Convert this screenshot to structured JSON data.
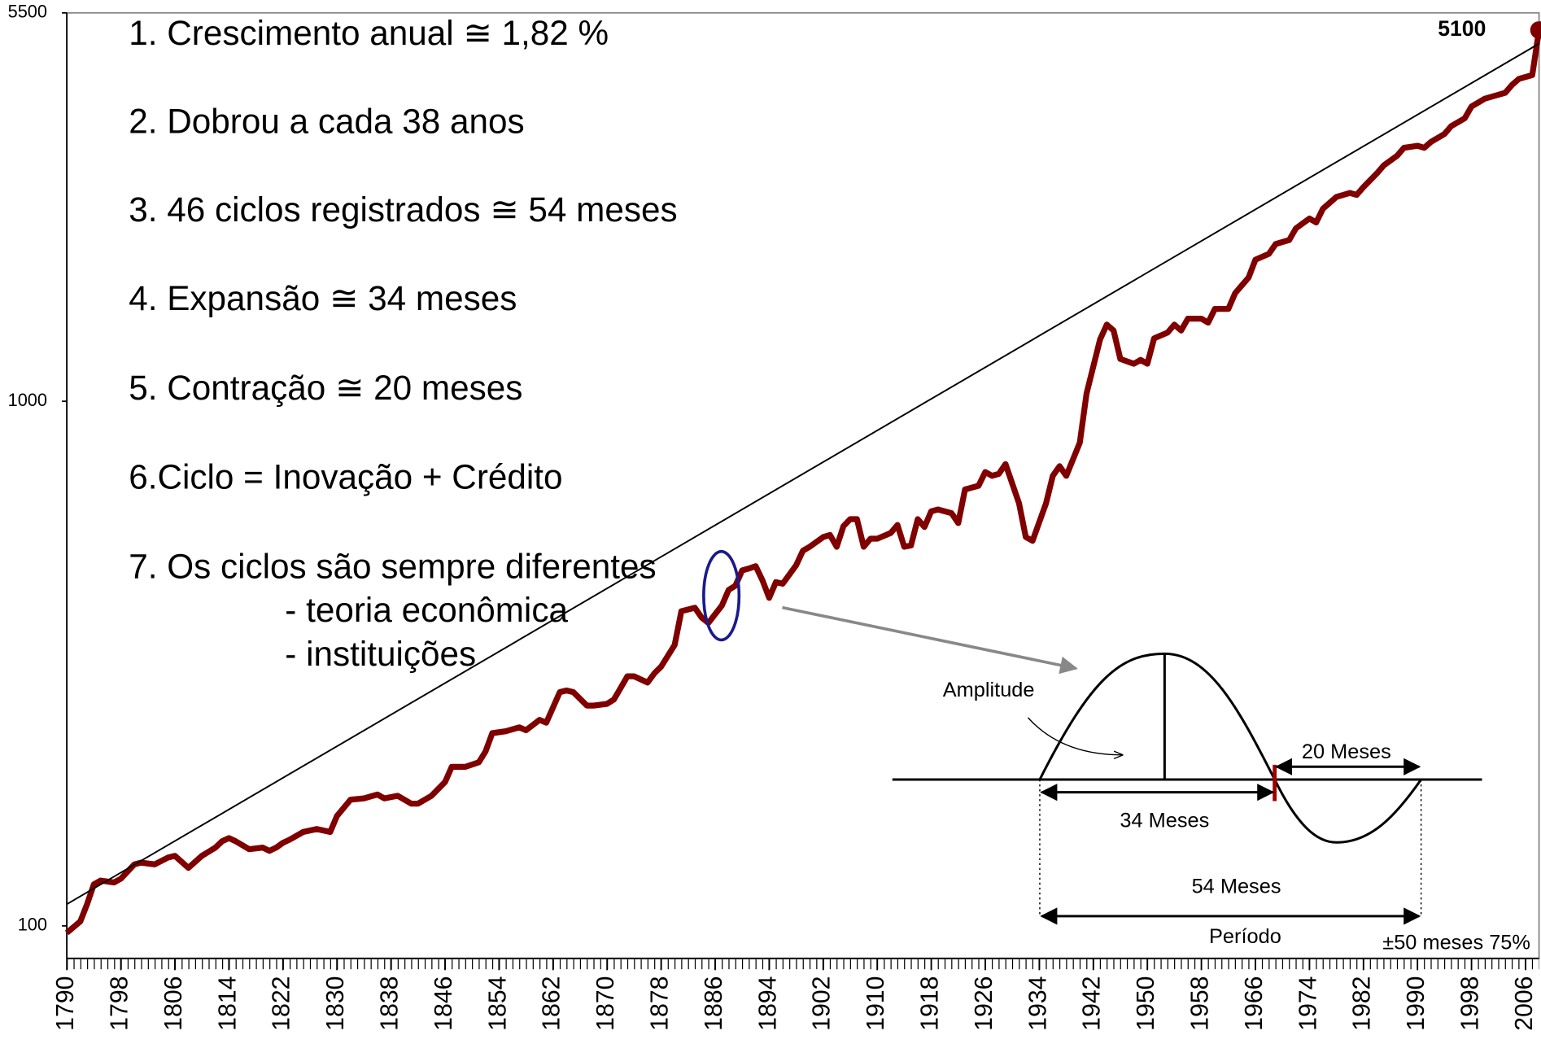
{
  "chart_data": {
    "type": "line",
    "log_y": true,
    "xlim": [
      1790,
      2008
    ],
    "ylim": [
      86.7,
      5500
    ],
    "xticks": [
      1790,
      1798,
      1806,
      1814,
      1822,
      1830,
      1838,
      1846,
      1854,
      1862,
      1870,
      1878,
      1886,
      1894,
      1902,
      1910,
      1918,
      1926,
      1934,
      1942,
      1950,
      1958,
      1966,
      1974,
      1982,
      1990,
      1998,
      2006
    ],
    "yticks": [
      100,
      1000,
      5500
    ],
    "series": [
      {
        "color": "#800000",
        "x": [
          1790,
          1792,
          1793,
          1794,
          1795,
          1797,
          1798,
          1800,
          1801,
          1803,
          1805,
          1806,
          1808,
          1810,
          1812,
          1813,
          1814,
          1815,
          1817,
          1819,
          1820,
          1821,
          1822,
          1823,
          1825,
          1827,
          1829,
          1830,
          1832,
          1834,
          1836,
          1837,
          1839,
          1841,
          1842,
          1844,
          1846,
          1847,
          1849,
          1851,
          1852,
          1853,
          1855,
          1857,
          1858,
          1860,
          1861,
          1863,
          1864,
          1865,
          1867,
          1868,
          1870,
          1871,
          1872,
          1873,
          1874,
          1876,
          1877,
          1878,
          1880,
          1881,
          1883,
          1884,
          1885,
          1887,
          1888,
          1889,
          1890,
          1891,
          1892,
          1893,
          1894,
          1895,
          1896,
          1898,
          1899,
          1900,
          1902,
          1903,
          1904,
          1905,
          1906,
          1907,
          1908,
          1909,
          1910,
          1912,
          1913,
          1914,
          1915,
          1916,
          1917,
          1918,
          1919,
          1921,
          1922,
          1923,
          1925,
          1926,
          1927,
          1928,
          1929,
          1931,
          1932,
          1933,
          1935,
          1936,
          1937,
          1938,
          1940,
          1941,
          1943,
          1944,
          1945,
          1946,
          1948,
          1949,
          1950,
          1951,
          1953,
          1954,
          1955,
          1956,
          1957,
          1958,
          1959,
          1960,
          1962,
          1963,
          1965,
          1966,
          1968,
          1969,
          1971,
          1972,
          1974,
          1975,
          1976,
          1978,
          1980,
          1981,
          1982,
          1984,
          1985,
          1987,
          1988,
          1990,
          1991,
          1992,
          1994,
          1995,
          1997,
          1998,
          2000,
          2001,
          2003,
          2004,
          2005,
          2007,
          2008
        ],
        "values": [
          97,
          102,
          110,
          120,
          122,
          121,
          123,
          131,
          132,
          131,
          135,
          136,
          129,
          136,
          141,
          145,
          147,
          145,
          140,
          141,
          139,
          141,
          144,
          146,
          151,
          153,
          151,
          162,
          174,
          175,
          178,
          175,
          177,
          171,
          171,
          177,
          188,
          201,
          201,
          205,
          215,
          233,
          235,
          239,
          236,
          247,
          244,
          279,
          281,
          279,
          263,
          263,
          265,
          270,
          284,
          299,
          299,
          291,
          303,
          312,
          343,
          398,
          404,
          387,
          378,
          408,
          437,
          445,
          476,
          480,
          485,
          456,
          422,
          452,
          449,
          487,
          519,
          528,
          551,
          556,
          528,
          578,
          596,
          596,
          528,
          547,
          547,
          561,
          581,
          528,
          531,
          596,
          576,
          617,
          622,
          612,
          586,
          679,
          690,
          733,
          721,
          727,
          759,
          639,
          551,
          542,
          639,
          721,
          752,
          721,
          834,
          1035,
          1312,
          1400,
          1364,
          1204,
          1179,
          1199,
          1179,
          1318,
          1352,
          1400,
          1364,
          1437,
          1437,
          1437,
          1412,
          1500,
          1500,
          1607,
          1722,
          1861,
          1910,
          1994,
          2029,
          2136,
          2230,
          2192,
          2328,
          2452,
          2495,
          2474,
          2560,
          2720,
          2815,
          2939,
          3042,
          3069,
          3042,
          3122,
          3232,
          3346,
          3463,
          3646,
          3775,
          3807,
          3873,
          4009,
          4115,
          4186,
          5100
        ]
      },
      {
        "color": "#000000",
        "x": [
          1790,
          2008
        ],
        "values": [
          110,
          4805
        ]
      }
    ],
    "annotations": [
      "1. Crescimento anual ≅ 1,82 %",
      "2. Dobrou a cada 38 anos",
      "3. 46 ciclos registrados ≅ 54 meses",
      "4. Expansão ≅ 34 meses",
      "5. Contração ≅ 20 meses",
      "6.Ciclo = Inovação + Crédito",
      "7. Os ciclos são sempre diferentes",
      "- teoria econômica",
      "- instituições"
    ],
    "diagram_labels": [
      "Amplitude",
      "20 Meses",
      "34 Meses",
      "54 Meses",
      "Período",
      "±50 meses 75%"
    ]
  }
}
